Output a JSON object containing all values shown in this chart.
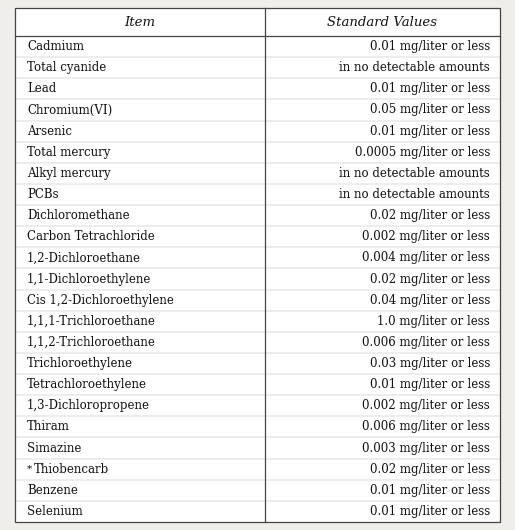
{
  "headers": [
    "Item",
    "Standard Values"
  ],
  "rows": [
    [
      "Cadmium",
      "0.01 mg/liter or less"
    ],
    [
      "Total cyanide",
      "in no detectable amounts"
    ],
    [
      "Lead",
      "0.01 mg/liter or less"
    ],
    [
      "Chromium(VI)",
      "0.05 mg/liter or less"
    ],
    [
      "Arsenic",
      "0.01 mg/liter or less"
    ],
    [
      "Total mercury",
      "0.0005 mg/liter or less"
    ],
    [
      "Alkyl mercury",
      "in no detectable amounts"
    ],
    [
      "PCBs",
      "in no detectable amounts"
    ],
    [
      "Dichloromethane",
      "0.02 mg/liter or less"
    ],
    [
      "Carbon Tetrachloride",
      "0.002 mg/liter or less"
    ],
    [
      "1,2-Dichloroethane",
      "0.004 mg/liter or less"
    ],
    [
      "1,1-Dichloroethylene",
      "0.02 mg/liter or less"
    ],
    [
      "Cis 1,2-Dichloroethylene",
      "0.04 mg/liter or less"
    ],
    [
      "1,1,1-Trichloroethane",
      "1.0 mg/liter or less"
    ],
    [
      "1,1,2-Trichloroethane",
      "0.006 mg/liter or less"
    ],
    [
      "Trichloroethylene",
      "0.03 mg/liter or less"
    ],
    [
      "Tetrachloroethylene",
      "0.01 mg/liter or less"
    ],
    [
      "1,3-Dichloropropene",
      "0.002 mg/liter or less"
    ],
    [
      "Thiram",
      "0.006 mg/liter or less"
    ],
    [
      "Simazine",
      "0.003 mg/liter or less"
    ],
    [
      "*Thiobencarb",
      "0.02 mg/liter or less"
    ],
    [
      "Benzene",
      "0.01 mg/liter or less"
    ],
    [
      "Selenium",
      "0.01 mg/liter or less"
    ]
  ],
  "col_split": 0.515,
  "border_color": "#444444",
  "row_line_color": "#aaaaaa",
  "text_color": "#111111",
  "font_size": 8.5,
  "header_font_size": 9.5,
  "bg_color": "#f0eeeb",
  "table_bg": "#ffffff"
}
